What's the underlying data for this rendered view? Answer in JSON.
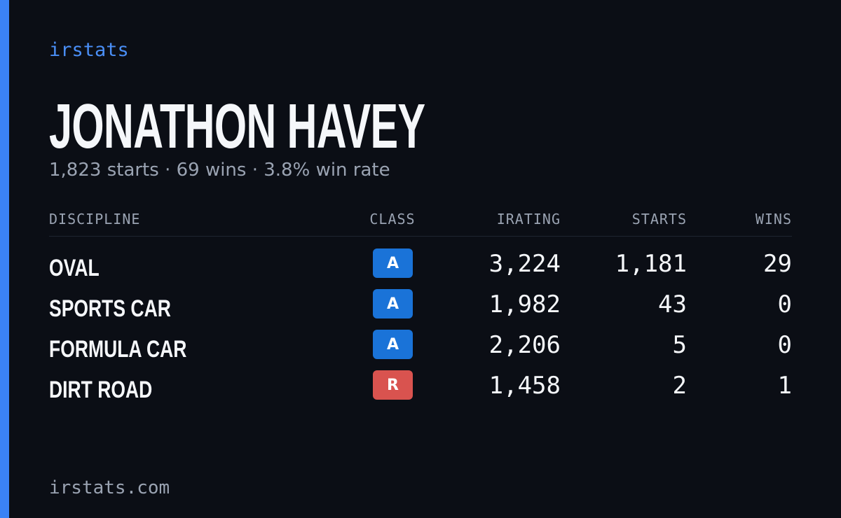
{
  "brand": "irstats",
  "name": "JONATHON HAVEY",
  "summary": "1,823 starts · 69 wins · 3.8% win rate",
  "table": {
    "headers": [
      "DISCIPLINE",
      "CLASS",
      "IRATING",
      "STARTS",
      "WINS"
    ],
    "rows": [
      [
        "OVAL",
        "A",
        "3,224",
        "1,181",
        "29"
      ],
      [
        "SPORTS CAR",
        "A",
        "1,982",
        "43",
        "0"
      ],
      [
        "FORMULA CAR",
        "A",
        "2,206",
        "5",
        "0"
      ],
      [
        "DIRT ROAD",
        "R",
        "1,458",
        "2",
        "1"
      ]
    ],
    "badge_colors": [
      "#1a73d8",
      "#1a73d8",
      "#1a73d8",
      "#d9534f"
    ]
  },
  "footer": "irstats.com"
}
